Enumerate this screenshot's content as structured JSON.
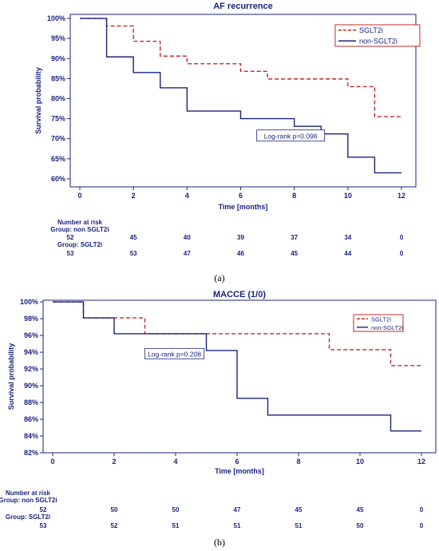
{
  "colors": {
    "sglt2i": "#c62828",
    "non_sglt2i": "#1a237e",
    "axis": "#1a237e"
  },
  "chart_data": [
    {
      "type": "line",
      "title": "AF recurrence",
      "xlabel": "Time [months]",
      "ylabel": "Survival probability",
      "xlim": [
        0,
        12
      ],
      "ylim": [
        0.58,
        1.01
      ],
      "x_ticks": [
        0,
        2,
        4,
        6,
        8,
        10,
        12
      ],
      "y_ticks": [
        {
          "value": 1.0,
          "label": "100%"
        },
        {
          "value": 0.95,
          "label": "95%"
        },
        {
          "value": 0.9,
          "label": "90%"
        },
        {
          "value": 0.85,
          "label": "85%"
        },
        {
          "value": 0.8,
          "label": "80%"
        },
        {
          "value": 0.75,
          "label": "75%"
        },
        {
          "value": 0.7,
          "label": "70%"
        },
        {
          "value": 0.65,
          "label": "65%"
        },
        {
          "value": 0.6,
          "label": "60%"
        }
      ],
      "legend_position": "top-right",
      "grid": false,
      "series": [
        {
          "name": "SGLT2i",
          "style": "dashed",
          "color": "#c62828",
          "steps": [
            [
              0,
              1.0
            ],
            [
              1,
              0.981
            ],
            [
              2,
              0.943
            ],
            [
              3,
              0.906
            ],
            [
              4,
              0.887
            ],
            [
              6,
              0.868
            ],
            [
              7,
              0.849
            ],
            [
              10,
              0.83
            ],
            [
              11,
              0.755
            ],
            [
              12,
              0.755
            ]
          ]
        },
        {
          "name": "non-SGLT2i",
          "style": "solid",
          "color": "#1a237e",
          "steps": [
            [
              0,
              1.0
            ],
            [
              1,
              0.904
            ],
            [
              2,
              0.865
            ],
            [
              3,
              0.827
            ],
            [
              4,
              0.769
            ],
            [
              6,
              0.75
            ],
            [
              8,
              0.731
            ],
            [
              9,
              0.712
            ],
            [
              10,
              0.654
            ],
            [
              11,
              0.615
            ],
            [
              12,
              0.615
            ]
          ]
        }
      ],
      "annotation": {
        "text": "Log-rank p=0.096",
        "x": 6.6,
        "y": 0.7
      },
      "risk_table": {
        "header": "Number at risk",
        "groups": [
          {
            "label": "Group: non SGLT2i",
            "values": [
              "52",
              "45",
              "40",
              "39",
              "37",
              "34",
              "0"
            ]
          },
          {
            "label": "Group: SGLT2i",
            "values": [
              "53",
              "53",
              "47",
              "46",
              "45",
              "44",
              "0"
            ]
          }
        ]
      },
      "panel_label": "(a)"
    },
    {
      "type": "line",
      "title": "MACCE (1/0)",
      "xlabel": "Time [months]",
      "ylabel": "Survival probability",
      "xlim": [
        0,
        12
      ],
      "ylim": [
        0.82,
        1.002
      ],
      "x_ticks": [
        0,
        2,
        4,
        6,
        8,
        10,
        12
      ],
      "y_ticks": [
        {
          "value": 1.0,
          "label": "100%"
        },
        {
          "value": 0.98,
          "label": "98%"
        },
        {
          "value": 0.96,
          "label": "96%"
        },
        {
          "value": 0.94,
          "label": "94%"
        },
        {
          "value": 0.92,
          "label": "92%"
        },
        {
          "value": 0.9,
          "label": "90%"
        },
        {
          "value": 0.88,
          "label": "88%"
        },
        {
          "value": 0.86,
          "label": "86%"
        },
        {
          "value": 0.84,
          "label": "84%"
        },
        {
          "value": 0.82,
          "label": "82%"
        }
      ],
      "legend_position": "top-right",
      "grid": false,
      "series": [
        {
          "name": "SGLT2i",
          "style": "dashed",
          "color": "#c62828",
          "steps": [
            [
              0,
              1.0
            ],
            [
              1,
              0.981
            ],
            [
              3,
              0.962
            ],
            [
              9,
              0.943
            ],
            [
              11,
              0.924
            ],
            [
              12,
              0.924
            ]
          ]
        },
        {
          "name": "non-SGLT2i",
          "style": "solid",
          "color": "#1a237e",
          "steps": [
            [
              0,
              1.0
            ],
            [
              1,
              0.981
            ],
            [
              2,
              0.962
            ],
            [
              5,
              0.942
            ],
            [
              6,
              0.885
            ],
            [
              7,
              0.865
            ],
            [
              11,
              0.846
            ],
            [
              12,
              0.846
            ]
          ]
        }
      ],
      "annotation": {
        "text": "Log-rank p=0.208",
        "x": 3.0,
        "y": 0.935
      },
      "risk_table": {
        "header": "Number at risk",
        "groups": [
          {
            "label": "Group: non SGLT2i",
            "values": [
              "52",
              "50",
              "50",
              "47",
              "45",
              "45",
              "0"
            ]
          },
          {
            "label": "Group: SGLT2i",
            "values": [
              "53",
              "52",
              "51",
              "51",
              "51",
              "50",
              "0"
            ]
          }
        ]
      },
      "panel_label": "(b)"
    }
  ]
}
